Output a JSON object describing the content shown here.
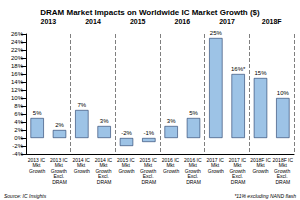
{
  "chart_data": {
    "type": "bar",
    "title": "DRAM Market Impacts on Worldwide IC Market Growth ($)",
    "groups": [
      "2013",
      "2014",
      "2015",
      "2016",
      "2017",
      "2018F"
    ],
    "categories": [
      "2013 IC Mkt Growth",
      "2013 IC Mkt Growth Excl. DRAM",
      "2014 IC Mkt Growth",
      "2014 IC Mkt Growth Excl. DRAM",
      "2015 IC Mkt Growth",
      "2015 IC Mkt Growth Excl. DRAM",
      "2016 IC Mkt Growth",
      "2016 IC Mkt Growth Excl. DRAM",
      "2017 IC Mkt Growth",
      "2017 IC Mkt Growth Excl. DRAM",
      "2018F IC Mkt Growth",
      "2018F IC Mkt Growth Excl. DRAM"
    ],
    "values": [
      5,
      2,
      7,
      3,
      -2,
      -1,
      3,
      5,
      25,
      16,
      15,
      10
    ],
    "value_labels": [
      "5%",
      "2%",
      "7%",
      "3%",
      "-2%",
      "-1%",
      "3%",
      "5%",
      "25%",
      "16%*",
      "15%",
      "10%"
    ],
    "color": "#9dc3e6",
    "ylim": [
      -4,
      26
    ],
    "yticks": [
      {
        "value": -4,
        "label": "-4%"
      },
      {
        "value": -2,
        "label": "-2%"
      },
      {
        "value": 0,
        "label": "0%"
      },
      {
        "value": 2,
        "label": "2%"
      },
      {
        "value": 4,
        "label": "4%"
      },
      {
        "value": 6,
        "label": "6%"
      },
      {
        "value": 8,
        "label": "8%"
      },
      {
        "value": 10,
        "label": "10%"
      },
      {
        "value": 12,
        "label": "12%"
      },
      {
        "value": 14,
        "label": "14%"
      },
      {
        "value": 16,
        "label": "16%"
      },
      {
        "value": 18,
        "label": "18%"
      },
      {
        "value": 20,
        "label": "20%"
      },
      {
        "value": 22,
        "label": "22%"
      },
      {
        "value": 24,
        "label": "24%"
      },
      {
        "value": 26,
        "label": "26%"
      }
    ],
    "grid": false,
    "data_labels": true,
    "annotations": [
      "Source: IC Insights",
      "*11% excluding NAND flash"
    ]
  }
}
